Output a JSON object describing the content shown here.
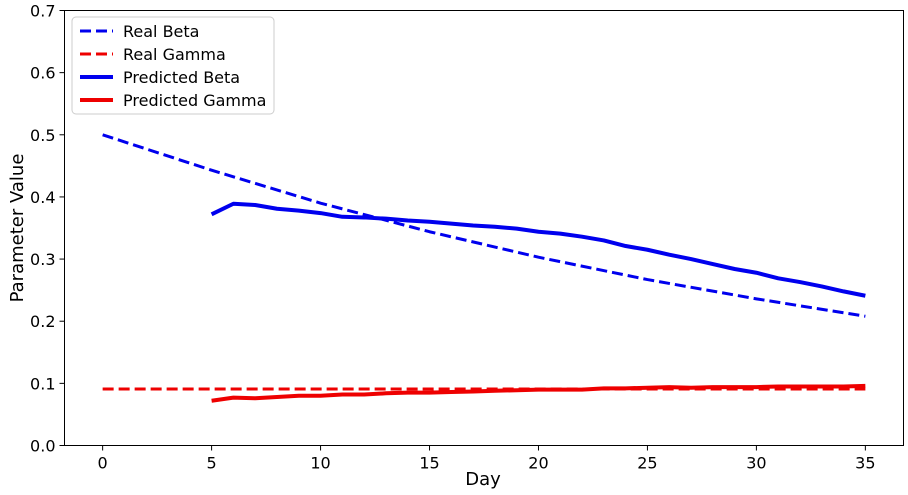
{
  "chart_data": {
    "type": "line",
    "xlabel": "Day",
    "ylabel": "Parameter Value",
    "xlim": [
      -1.75,
      36.75
    ],
    "ylim": [
      0,
      0.7
    ],
    "xticks": [
      0,
      5,
      10,
      15,
      20,
      25,
      30,
      35
    ],
    "yticks": [
      0.0,
      0.1,
      0.2,
      0.3,
      0.4,
      0.5,
      0.6,
      0.7
    ],
    "xtick_labels": [
      "0",
      "5",
      "10",
      "15",
      "20",
      "25",
      "30",
      "35"
    ],
    "ytick_labels": [
      "0.0",
      "0.1",
      "0.2",
      "0.3",
      "0.4",
      "0.5",
      "0.6",
      "0.7"
    ],
    "grid": false,
    "legend_position": "upper-left",
    "series": [
      {
        "name": "Real Beta",
        "color": "#0000ee",
        "style": "dashed",
        "x": [
          0,
          5,
          10,
          15,
          20,
          25,
          30,
          35
        ],
        "y": [
          0.5,
          0.443,
          0.39,
          0.344,
          0.303,
          0.267,
          0.236,
          0.208
        ]
      },
      {
        "name": "Real Gamma",
        "color": "#ee0000",
        "style": "dashed",
        "x": [
          0,
          35
        ],
        "y": [
          0.091,
          0.091
        ]
      },
      {
        "name": "Predicted Beta",
        "color": "#0000ee",
        "style": "solid",
        "x": [
          5,
          6,
          7,
          8,
          9,
          10,
          11,
          12,
          13,
          14,
          15,
          16,
          17,
          18,
          19,
          20,
          21,
          22,
          23,
          24,
          25,
          26,
          27,
          28,
          29,
          30,
          31,
          32,
          33,
          34,
          35
        ],
        "y": [
          0.372,
          0.389,
          0.387,
          0.381,
          0.378,
          0.374,
          0.368,
          0.367,
          0.365,
          0.362,
          0.36,
          0.357,
          0.354,
          0.352,
          0.349,
          0.344,
          0.341,
          0.336,
          0.33,
          0.321,
          0.315,
          0.307,
          0.3,
          0.292,
          0.284,
          0.278,
          0.269,
          0.263,
          0.256,
          0.248,
          0.241
        ]
      },
      {
        "name": "Predicted Gamma",
        "color": "#ee0000",
        "style": "solid",
        "x": [
          5,
          6,
          7,
          8,
          9,
          10,
          11,
          12,
          13,
          14,
          15,
          16,
          17,
          18,
          19,
          20,
          21,
          22,
          23,
          24,
          25,
          26,
          27,
          28,
          29,
          30,
          31,
          32,
          33,
          34,
          35
        ],
        "y": [
          0.072,
          0.077,
          0.076,
          0.078,
          0.08,
          0.08,
          0.082,
          0.082,
          0.084,
          0.085,
          0.085,
          0.086,
          0.087,
          0.088,
          0.089,
          0.09,
          0.09,
          0.09,
          0.092,
          0.092,
          0.093,
          0.094,
          0.093,
          0.094,
          0.094,
          0.094,
          0.095,
          0.095,
          0.095,
          0.095,
          0.096
        ]
      }
    ]
  }
}
